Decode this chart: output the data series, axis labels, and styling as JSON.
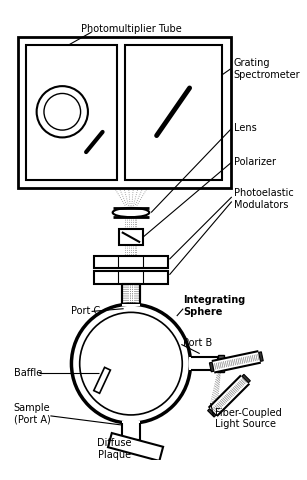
{
  "bg_color": "#ffffff",
  "labels": {
    "photomultiplier": "Photomultiplier Tube",
    "grating": "Grating\nSpectrometer",
    "lens": "Lens",
    "polarizer": "Polarizer",
    "photoelastic": "Photoelastic\nModulators",
    "port_c": "Port C",
    "integrating": "Integrating\nSphere",
    "port_b": "Port B",
    "baffle": "Baffle",
    "sample": "Sample\n(Port A)",
    "diffuse": "Diffuse\nPlaque",
    "fiber": "Fiber-Coupled\nLight Source"
  },
  "figsize": [
    3.07,
    4.8
  ],
  "dpi": 100
}
